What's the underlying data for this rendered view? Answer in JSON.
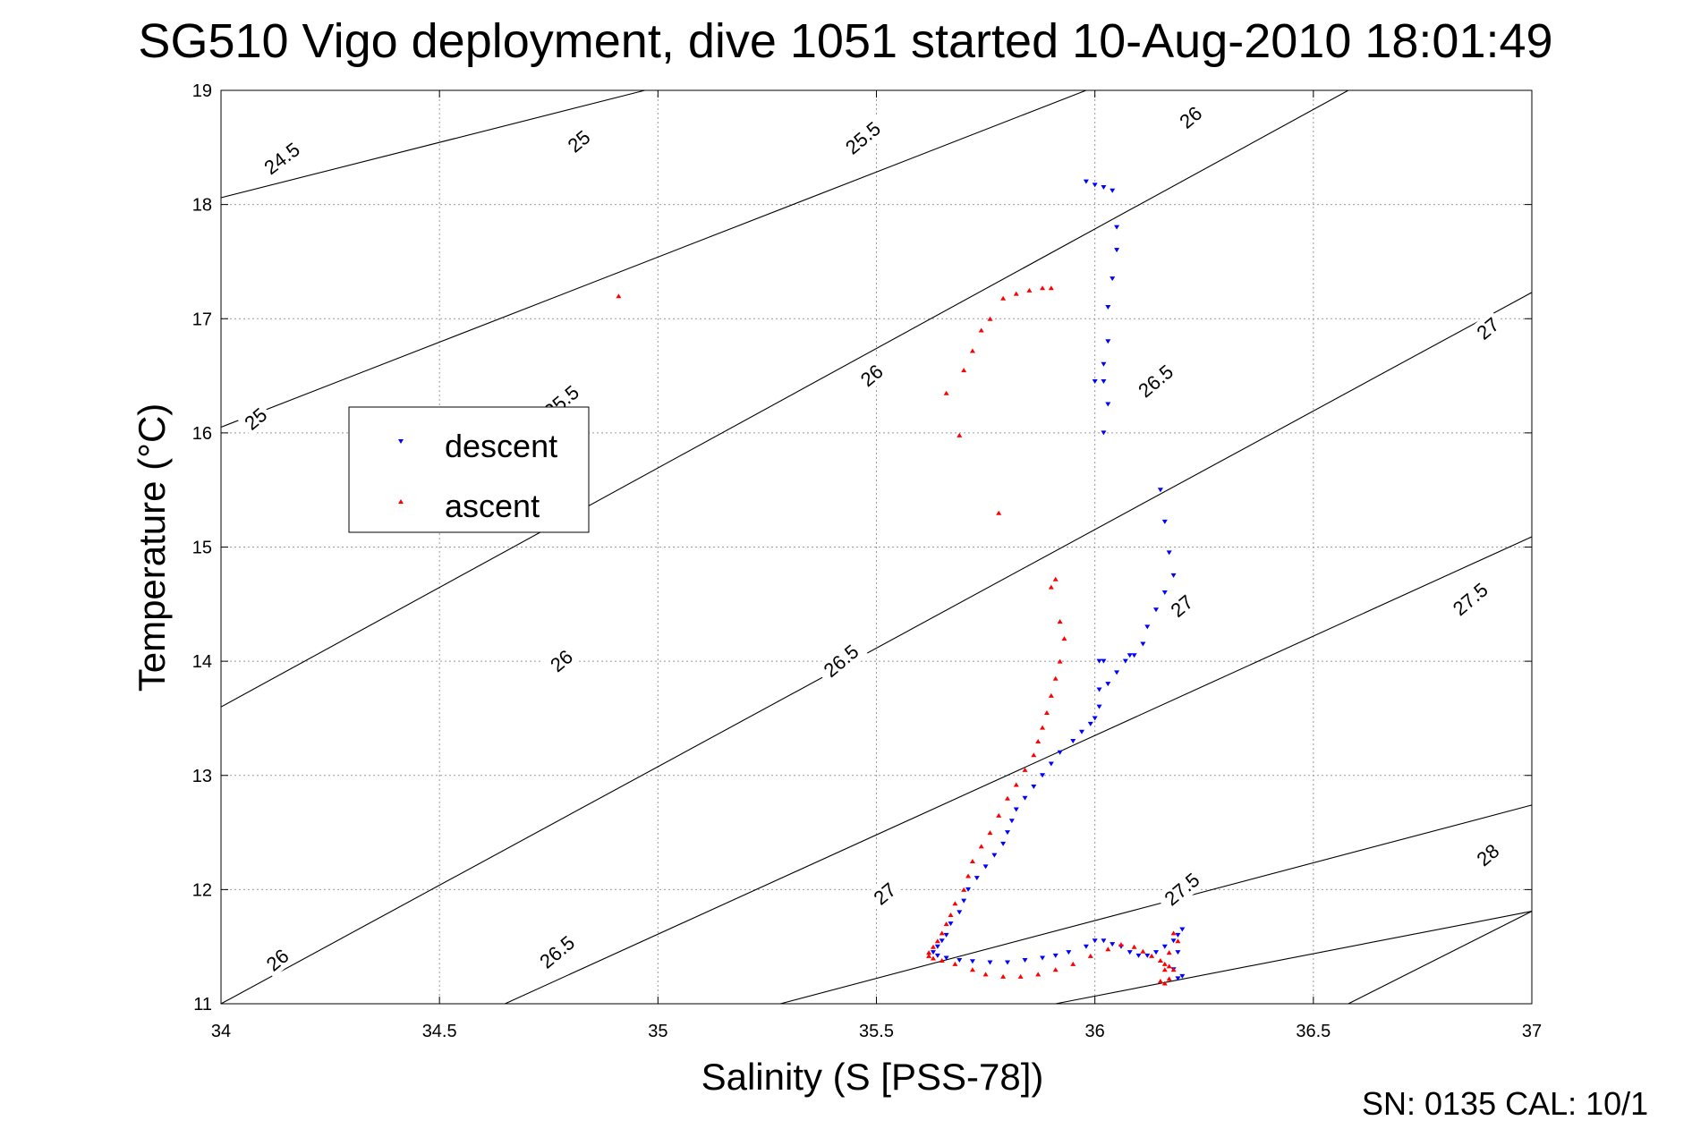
{
  "chart_data": {
    "type": "scatter",
    "title": "SG510 Vigo deployment, dive 1051 started 10-Aug-2010 18:01:49",
    "xlabel": "Salinity (S [PSS-78])",
    "ylabel": "Temperature (°C)",
    "xlim": [
      34,
      37
    ],
    "ylim": [
      11,
      19
    ],
    "x_ticks": [
      "34",
      "34.5",
      "35",
      "35.5",
      "36",
      "36.5",
      "37"
    ],
    "y_ticks": [
      "11",
      "12",
      "13",
      "14",
      "15",
      "16",
      "17",
      "18",
      "19"
    ],
    "grid": true,
    "legend_position": "left",
    "footer": "SN: 0135  CAL: 10/1",
    "isopycnals": [
      {
        "label": "24.5",
        "segments": [
          [
            [
              34.0,
              18.06
            ],
            [
              34.97,
              19.0
            ]
          ]
        ]
      },
      {
        "label": "25",
        "segments": [
          [
            [
              34.0,
              16.05
            ],
            [
              35.98,
              19.0
            ]
          ]
        ]
      },
      {
        "label": "25.5",
        "segments": [
          [
            [
              34.0,
              13.6
            ],
            [
              36.58,
              19.0
            ]
          ]
        ]
      },
      {
        "label": "26",
        "segments": [
          [
            [
              34.0,
              11.0
            ],
            [
              37.0,
              17.23
            ]
          ]
        ]
      },
      {
        "label": "26.5",
        "segments": [
          [
            [
              34.65,
              11.0
            ],
            [
              37.0,
              15.09
            ]
          ]
        ]
      },
      {
        "label": "27",
        "segments": [
          [
            [
              35.28,
              11.0
            ],
            [
              37.0,
              12.74
            ]
          ]
        ]
      },
      {
        "label": "27.5",
        "segments": [
          [
            [
              35.91,
              11.0
            ],
            [
              37.0,
              11.81
            ]
          ]
        ]
      },
      {
        "label": "28",
        "segments": [
          [
            [
              36.58,
              11.0
            ],
            [
              37.0,
              11.81
            ]
          ]
        ]
      }
    ],
    "contour_labels": [
      {
        "text": "24.5",
        "x": 34.14,
        "y": 18.4,
        "angle": -37
      },
      {
        "text": "25",
        "x": 34.82,
        "y": 18.55,
        "angle": -40
      },
      {
        "text": "25.5",
        "x": 35.47,
        "y": 18.58,
        "angle": -40
      },
      {
        "text": "26",
        "x": 36.22,
        "y": 18.76,
        "angle": -40
      },
      {
        "text": "25",
        "x": 34.08,
        "y": 16.12,
        "angle": -40
      },
      {
        "text": "25.5",
        "x": 34.78,
        "y": 16.27,
        "angle": -40
      },
      {
        "text": "26",
        "x": 35.49,
        "y": 16.5,
        "angle": -40
      },
      {
        "text": "26.5",
        "x": 36.14,
        "y": 16.45,
        "angle": -40
      },
      {
        "text": "27",
        "x": 36.9,
        "y": 16.91,
        "angle": -40
      },
      {
        "text": "26",
        "x": 34.78,
        "y": 14.0,
        "angle": -40
      },
      {
        "text": "26.5",
        "x": 35.42,
        "y": 14.0,
        "angle": -40
      },
      {
        "text": "27",
        "x": 36.2,
        "y": 14.48,
        "angle": -40
      },
      {
        "text": "27.5",
        "x": 36.86,
        "y": 14.54,
        "angle": -40
      },
      {
        "text": "26",
        "x": 34.13,
        "y": 11.38,
        "angle": -40
      },
      {
        "text": "26.5",
        "x": 34.77,
        "y": 11.45,
        "angle": -40
      },
      {
        "text": "27",
        "x": 35.52,
        "y": 11.96,
        "angle": -40
      },
      {
        "text": "27.5",
        "x": 36.2,
        "y": 12.0,
        "angle": -40
      },
      {
        "text": "28",
        "x": 36.9,
        "y": 12.3,
        "angle": -40
      }
    ],
    "series": [
      {
        "name": "descent",
        "color": "#0000ff",
        "marker": "triangle-down",
        "x": [
          35.98,
          36.0,
          36.02,
          36.04,
          36.05,
          36.05,
          36.04,
          36.03,
          36.03,
          36.02,
          36.02,
          36.0,
          36.03,
          36.02,
          36.02,
          36.01,
          36.15,
          36.16,
          36.17,
          36.18,
          36.16,
          36.14,
          36.12,
          36.11,
          36.09,
          36.08,
          36.07,
          36.05,
          36.03,
          36.01,
          36.01,
          36.0,
          35.99,
          35.97,
          35.95,
          35.92,
          35.9,
          35.88,
          35.86,
          35.84,
          35.82,
          35.81,
          35.8,
          35.79,
          35.77,
          35.75,
          35.73,
          35.71,
          35.7,
          35.69,
          35.67,
          35.66,
          35.65,
          35.64,
          35.63,
          35.64,
          35.66,
          35.69,
          35.72,
          35.76,
          35.8,
          35.84,
          35.88,
          35.91,
          35.94,
          35.98,
          36.0,
          36.02,
          36.04,
          36.06,
          36.08,
          36.1,
          36.12,
          36.14,
          36.16,
          36.18,
          36.19,
          36.2,
          36.19,
          36.18,
          36.19,
          36.2
        ],
        "y": [
          18.2,
          18.17,
          18.15,
          18.12,
          17.8,
          17.6,
          17.35,
          17.1,
          16.8,
          16.6,
          16.45,
          16.45,
          16.25,
          16.0,
          14.0,
          14.0,
          15.5,
          15.22,
          14.95,
          14.75,
          14.6,
          14.45,
          14.3,
          14.15,
          14.05,
          14.05,
          14.0,
          13.9,
          13.8,
          13.75,
          13.6,
          13.5,
          13.45,
          13.38,
          13.3,
          13.2,
          13.1,
          13.0,
          12.9,
          12.8,
          12.7,
          12.6,
          12.5,
          12.4,
          12.3,
          12.2,
          12.1,
          12.0,
          11.9,
          11.8,
          11.7,
          11.6,
          11.55,
          11.5,
          11.45,
          11.42,
          11.4,
          11.38,
          11.37,
          11.36,
          11.36,
          11.38,
          11.4,
          11.42,
          11.45,
          11.5,
          11.55,
          11.55,
          11.52,
          11.5,
          11.45,
          11.42,
          11.42,
          11.45,
          11.5,
          11.55,
          11.6,
          11.65,
          11.45,
          11.3,
          11.22,
          11.24
        ]
      },
      {
        "name": "ascent",
        "color": "#ff0000",
        "marker": "triangle-up",
        "x": [
          34.91,
          35.9,
          35.88,
          35.85,
          35.82,
          35.79,
          35.76,
          35.74,
          35.72,
          35.7,
          35.66,
          35.69,
          35.78,
          35.91,
          35.9,
          35.92,
          35.93,
          35.92,
          35.91,
          35.9,
          35.89,
          35.88,
          35.87,
          35.86,
          35.84,
          35.82,
          35.8,
          35.78,
          35.76,
          35.74,
          35.72,
          35.71,
          35.7,
          35.68,
          35.67,
          35.66,
          35.65,
          35.64,
          35.63,
          35.62,
          35.62,
          35.63,
          35.65,
          35.68,
          35.72,
          35.75,
          35.79,
          35.83,
          35.87,
          35.91,
          35.95,
          35.99,
          36.03,
          36.06,
          36.09,
          36.11,
          36.13,
          36.15,
          36.16,
          36.17,
          36.18,
          36.19,
          36.18,
          36.17,
          36.16,
          36.15,
          36.16,
          36.17
        ],
        "y": [
          17.2,
          17.27,
          17.27,
          17.25,
          17.22,
          17.18,
          17.0,
          16.9,
          16.72,
          16.55,
          16.35,
          15.98,
          15.3,
          14.72,
          14.65,
          14.35,
          14.2,
          14.0,
          13.85,
          13.7,
          13.55,
          13.42,
          13.3,
          13.18,
          13.05,
          12.92,
          12.8,
          12.65,
          12.5,
          12.38,
          12.25,
          12.12,
          12.0,
          11.88,
          11.78,
          11.7,
          11.62,
          11.55,
          11.5,
          11.45,
          11.42,
          11.4,
          11.38,
          11.35,
          11.3,
          11.26,
          11.24,
          11.24,
          11.26,
          11.3,
          11.35,
          11.42,
          11.48,
          11.52,
          11.5,
          11.46,
          11.42,
          11.38,
          11.35,
          11.33,
          11.3,
          11.55,
          11.62,
          11.45,
          11.3,
          11.2,
          11.18,
          11.22
        ]
      }
    ]
  }
}
